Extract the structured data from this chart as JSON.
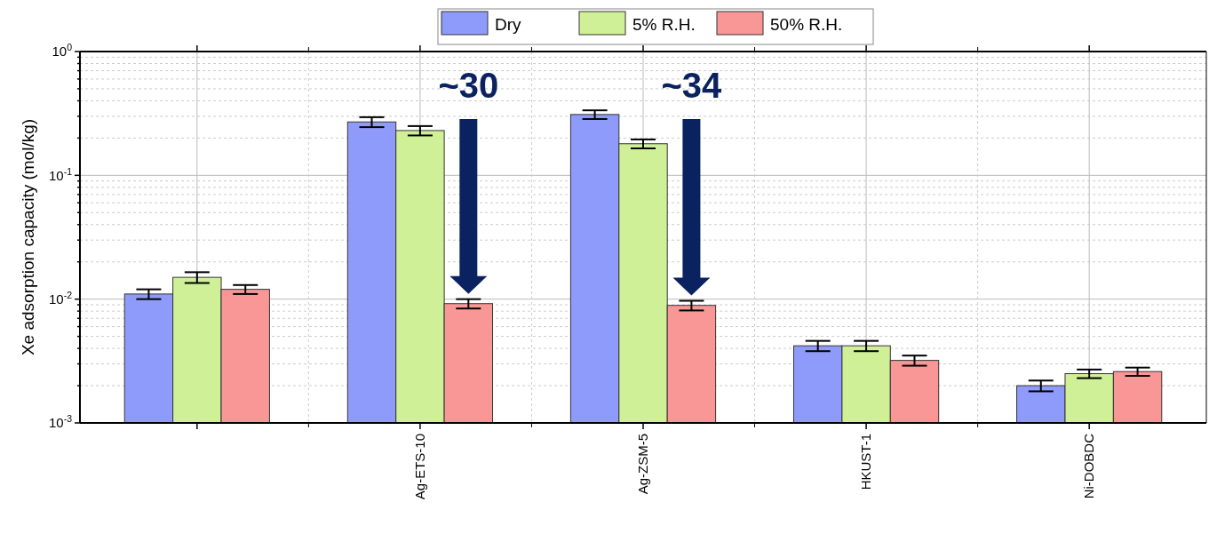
{
  "chart_data": {
    "type": "bar",
    "ylabel": "Xe adsorption capacity (mol/kg)",
    "categories": [
      null,
      "Ag-ETS-10",
      "Ag-ZSM-5",
      "HKUST-1",
      "Ni-DOBDC"
    ],
    "series": [
      {
        "name": "Dry",
        "color": "#8f9bfa",
        "values": [
          0.011,
          0.27,
          0.31,
          0.0042,
          0.002
        ],
        "errors": [
          0.001,
          0.025,
          0.025,
          0.0004,
          0.0002
        ]
      },
      {
        "name": "5% R.H.",
        "color": "#d0f097",
        "values": [
          0.015,
          0.23,
          0.18,
          0.0042,
          0.0025
        ],
        "errors": [
          0.0015,
          0.02,
          0.015,
          0.0004,
          0.0002
        ]
      },
      {
        "name": "50% R.H.",
        "color": "#f99797",
        "values": [
          0.012,
          0.0092,
          0.0089,
          0.0032,
          0.0026
        ],
        "errors": [
          0.001,
          0.0008,
          0.0008,
          0.0003,
          0.0002
        ]
      }
    ],
    "log": true,
    "ylim": [
      0.001,
      1
    ],
    "yticks": [
      {
        "value": 0.001,
        "label": "10$^{-3}$"
      },
      {
        "value": 0.002,
        "label": null
      },
      {
        "value": 0.003,
        "label": null
      },
      {
        "value": 0.004,
        "label": null
      },
      {
        "value": 0.005,
        "label": null
      },
      {
        "value": 0.006,
        "label": null
      },
      {
        "value": 0.007,
        "label": null
      },
      {
        "value": 0.008,
        "label": null
      },
      {
        "value": 0.009,
        "label": null
      },
      {
        "value": 0.01,
        "label": "10$^{-2}$"
      },
      {
        "value": 0.02,
        "label": null
      },
      {
        "value": 0.03,
        "label": null
      },
      {
        "value": 0.04,
        "label": null
      },
      {
        "value": 0.05,
        "label": null
      },
      {
        "value": 0.06,
        "label": null
      },
      {
        "value": 0.07,
        "label": null
      },
      {
        "value": 0.08,
        "label": null
      },
      {
        "value": 0.09,
        "label": null
      },
      {
        "value": 0.1,
        "label": "10$^{-1}$"
      },
      {
        "value": 0.2,
        "label": null
      },
      {
        "value": 0.3,
        "label": null
      },
      {
        "value": 0.4,
        "label": null
      },
      {
        "value": 0.5,
        "label": null
      },
      {
        "value": 0.6,
        "label": null
      },
      {
        "value": 0.7,
        "label": null
      },
      {
        "value": 0.8,
        "label": null
      },
      {
        "value": 0.9,
        "label": null
      },
      {
        "value": 1,
        "label": "10$^{0}$"
      }
    ],
    "grid": true,
    "legend": "top",
    "annotations": [
      "~30",
      "~34"
    ]
  }
}
